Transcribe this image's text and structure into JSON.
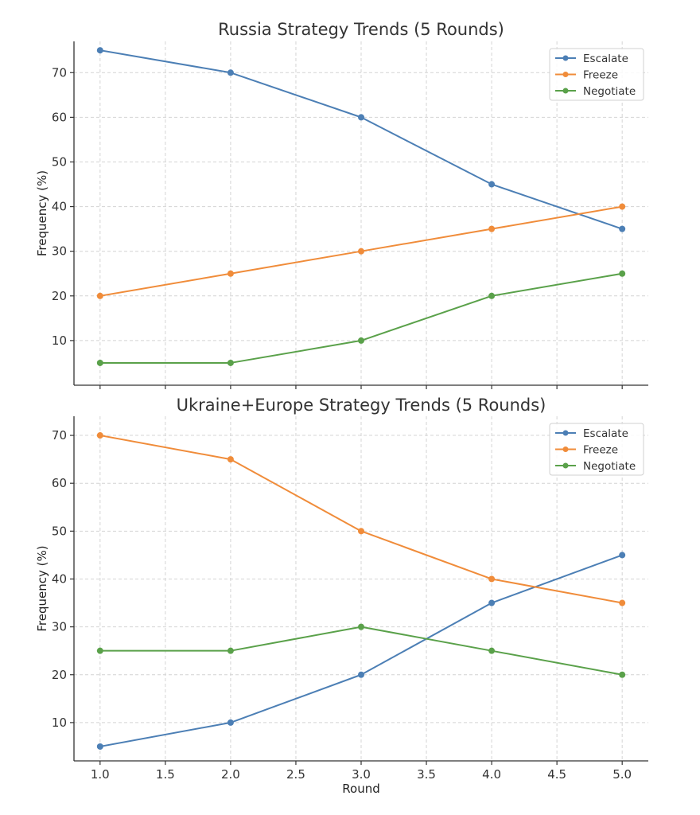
{
  "colors": {
    "Escalate": "#4c7fb5",
    "Freeze": "#f08c3a",
    "Negotiate": "#5aa14a"
  },
  "chart_data": [
    {
      "type": "line",
      "title": "Russia Strategy Trends (5 Rounds)",
      "xlabel": "",
      "ylabel": "Frequency (%)",
      "x": [
        1,
        2,
        3,
        4,
        5
      ],
      "xlim": [
        0.8,
        5.2
      ],
      "ylim": [
        0,
        77
      ],
      "xticks": [
        1.0,
        1.5,
        2.0,
        2.5,
        3.0,
        3.5,
        4.0,
        4.5,
        5.0
      ],
      "yticks": [
        10,
        20,
        30,
        40,
        50,
        60,
        70
      ],
      "show_xtick_labels": false,
      "grid": true,
      "legend": "top-right",
      "series": [
        {
          "name": "Escalate",
          "values": [
            75,
            70,
            60,
            45,
            35
          ]
        },
        {
          "name": "Freeze",
          "values": [
            20,
            25,
            30,
            35,
            40
          ]
        },
        {
          "name": "Negotiate",
          "values": [
            5,
            5,
            10,
            20,
            25
          ]
        }
      ]
    },
    {
      "type": "line",
      "title": "Ukraine+Europe Strategy Trends (5 Rounds)",
      "xlabel": "Round",
      "ylabel": "Frequency (%)",
      "x": [
        1,
        2,
        3,
        4,
        5
      ],
      "xlim": [
        0.8,
        5.2
      ],
      "ylim": [
        2,
        74
      ],
      "xticks": [
        1.0,
        1.5,
        2.0,
        2.5,
        3.0,
        3.5,
        4.0,
        4.5,
        5.0
      ],
      "yticks": [
        10,
        20,
        30,
        40,
        50,
        60,
        70
      ],
      "show_xtick_labels": true,
      "grid": true,
      "legend": "top-right",
      "series": [
        {
          "name": "Escalate",
          "values": [
            5,
            10,
            20,
            35,
            45
          ]
        },
        {
          "name": "Freeze",
          "values": [
            70,
            65,
            50,
            40,
            35
          ]
        },
        {
          "name": "Negotiate",
          "values": [
            25,
            25,
            30,
            25,
            20
          ]
        }
      ]
    }
  ]
}
